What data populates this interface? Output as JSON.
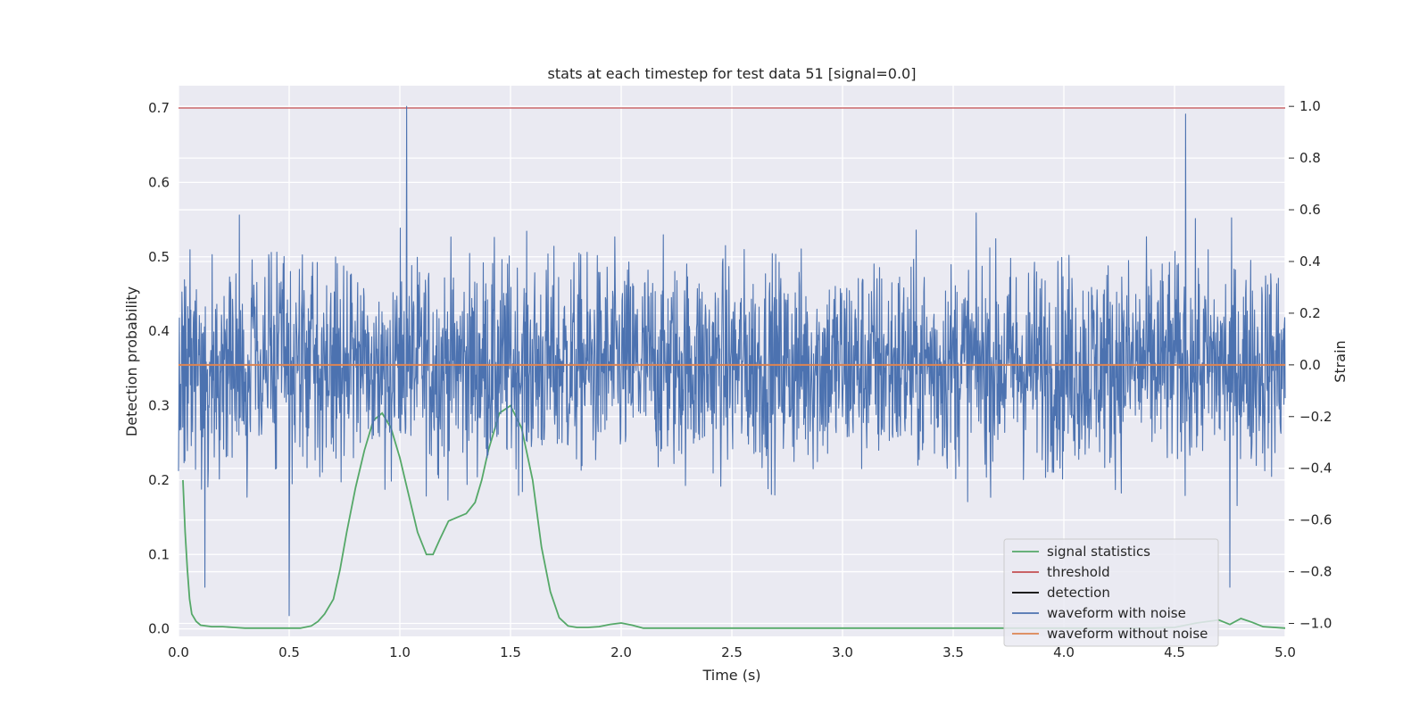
{
  "chart_data": {
    "type": "line",
    "title": "stats at each timestep for test data 51 [signal=0.0]",
    "xlabel": "Time (s)",
    "ylabel": "Detection probability",
    "y2label": "Strain",
    "xlim": [
      0.0,
      5.0
    ],
    "ylim": [
      -0.01,
      0.73
    ],
    "y2lim": [
      -1.05,
      1.08
    ],
    "grid": true,
    "legend_position": "lower-right",
    "x_ticks": [
      "0.0",
      "0.5",
      "1.0",
      "1.5",
      "2.0",
      "2.5",
      "3.0",
      "3.5",
      "4.0",
      "4.5",
      "5.0"
    ],
    "y_ticks": [
      "0.0",
      "0.1",
      "0.2",
      "0.3",
      "0.4",
      "0.5",
      "0.6",
      "0.7"
    ],
    "y2_ticks": [
      "−1.0",
      "−0.8",
      "−0.6",
      "−0.4",
      "−0.2",
      "0.0",
      "0.2",
      "0.4",
      "0.6",
      "0.8",
      "1.0"
    ],
    "series": [
      {
        "name": "signal statistics",
        "axis": "left",
        "color": "#55a868",
        "x": [
          0.02,
          0.03,
          0.04,
          0.05,
          0.06,
          0.08,
          0.1,
          0.15,
          0.2,
          0.25,
          0.3,
          0.4,
          0.5,
          0.55,
          0.6,
          0.63,
          0.66,
          0.7,
          0.73,
          0.76,
          0.8,
          0.84,
          0.88,
          0.92,
          0.96,
          1.0,
          1.04,
          1.08,
          1.12,
          1.15,
          1.18,
          1.22,
          1.26,
          1.3,
          1.34,
          1.37,
          1.4,
          1.45,
          1.5,
          1.55,
          1.6,
          1.64,
          1.68,
          1.72,
          1.76,
          1.8,
          1.85,
          1.9,
          1.95,
          2.0,
          2.05,
          2.1,
          2.2,
          2.5,
          3.0,
          3.5,
          4.0,
          4.4,
          4.5,
          4.6,
          4.7,
          4.75,
          4.8,
          4.85,
          4.9,
          5.0
        ],
        "y": [
          0.2,
          0.13,
          0.08,
          0.04,
          0.02,
          0.01,
          0.005,
          0.003,
          0.003,
          0.002,
          0.001,
          0.001,
          0.001,
          0.001,
          0.004,
          0.01,
          0.02,
          0.04,
          0.08,
          0.13,
          0.19,
          0.24,
          0.28,
          0.29,
          0.27,
          0.23,
          0.18,
          0.13,
          0.1,
          0.1,
          0.12,
          0.145,
          0.15,
          0.155,
          0.17,
          0.2,
          0.24,
          0.29,
          0.3,
          0.27,
          0.2,
          0.11,
          0.05,
          0.015,
          0.004,
          0.002,
          0.002,
          0.003,
          0.006,
          0.008,
          0.005,
          0.001,
          0.001,
          0.001,
          0.001,
          0.001,
          0.001,
          0.001,
          0.002,
          0.008,
          0.012,
          0.006,
          0.014,
          0.009,
          0.003,
          0.001
        ]
      },
      {
        "name": "threshold",
        "axis": "left",
        "color": "#c44e52",
        "x": [
          0.0,
          5.0
        ],
        "y": [
          0.7,
          0.7
        ]
      },
      {
        "name": "detection",
        "axis": "left",
        "color": "#000000",
        "x": [],
        "y": []
      },
      {
        "name": "waveform with noise",
        "axis": "right",
        "color": "#4c72b0",
        "note_samples": "dense noise, amplitude mostly within -0.6..0.6 strain, extremes from about -0.97 to 1.0",
        "peaks": [
          {
            "x": 1.03,
            "y": 1.0
          },
          {
            "x": 4.55,
            "y": 0.97
          },
          {
            "x": 0.5,
            "y": -0.97
          },
          {
            "x": 0.12,
            "y": -0.86
          },
          {
            "x": 4.75,
            "y": -0.86
          }
        ]
      },
      {
        "name": "waveform without noise",
        "axis": "right",
        "color": "#dd8452",
        "x": [
          0.0,
          5.0
        ],
        "y": [
          0.0,
          0.0
        ]
      }
    ]
  }
}
